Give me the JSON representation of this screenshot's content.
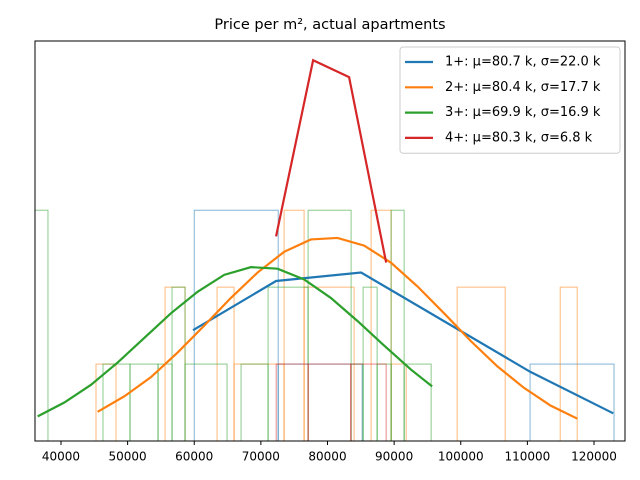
{
  "chart_data": {
    "type": "line",
    "title": "Price per m², actual apartments",
    "xlim": [
      36100,
      124650
    ],
    "ylim": [
      0,
      5.2
    ],
    "xticks": [
      40000,
      50000,
      60000,
      70000,
      80000,
      90000,
      100000,
      110000,
      120000
    ],
    "legend": "upper right",
    "series": [
      {
        "name": "1+: μ=80.7 k, σ=22.0 k",
        "color": "#1f77b4",
        "x": [
          59820,
          72280,
          85045,
          110420,
          122883
        ],
        "values": [
          1.44,
          2.08,
          2.19,
          0.9,
          0.36
        ]
      },
      {
        "name": "2+: μ=80.4 k, σ=17.7 k",
        "color": "#ff7f0e",
        "x": [
          45500,
          49500,
          53500,
          57500,
          61500,
          65500,
          69500,
          73500,
          77500,
          81500,
          85500,
          89500,
          93500,
          97500,
          101500,
          105500,
          109500,
          113500,
          117500
        ],
        "values": [
          0.38,
          0.58,
          0.83,
          1.15,
          1.5,
          1.86,
          2.19,
          2.46,
          2.62,
          2.64,
          2.54,
          2.32,
          2.01,
          1.66,
          1.3,
          0.97,
          0.69,
          0.46,
          0.29
        ]
      },
      {
        "name": "3+: μ=69.9 k, σ=16.9 k",
        "color": "#2ca02c",
        "x": [
          36500,
          40500,
          44500,
          48500,
          52500,
          56500,
          60500,
          64500,
          68500,
          72500,
          76500,
          80500,
          84500,
          88500,
          92500,
          95700
        ],
        "values": [
          0.32,
          0.5,
          0.73,
          1.02,
          1.34,
          1.66,
          1.94,
          2.16,
          2.26,
          2.24,
          2.1,
          1.86,
          1.56,
          1.24,
          0.93,
          0.71
        ]
      },
      {
        "name": "4+: μ=80.3 k, σ=6.8 k",
        "color": "#d62728",
        "x": [
          72280,
          77840,
          83240,
          88800
        ],
        "values": [
          2.66,
          4.95,
          4.73,
          2.32
        ]
      }
    ],
    "histograms": [
      {
        "color": "#1f77b4",
        "bins": [
          60000,
          72600,
          85200,
          97800,
          110400,
          123000
        ],
        "counts": [
          3,
          1,
          0,
          0,
          1
        ]
      },
      {
        "color": "#ff7f0e",
        "bins": [
          45255,
          48258,
          55616,
          58619,
          63423,
          65976,
          73483,
          76486,
          83994,
          86547,
          89550,
          91802,
          99459,
          106667,
          114925,
          117477
        ],
        "counts": [
          1,
          0,
          2,
          0,
          2,
          1,
          3,
          2,
          0,
          3,
          1,
          0,
          2,
          0,
          2
        ]
      },
      {
        "color": "#2ca02c",
        "bins": [
          36096,
          38048,
          46306,
          50360,
          54565,
          56667,
          58619,
          64925,
          67027,
          71081,
          77087,
          83544,
          85345,
          87447,
          89550,
          91502,
          95556
        ],
        "counts": [
          3,
          0,
          1,
          1,
          1,
          2,
          1,
          0,
          1,
          2,
          3,
          1,
          2,
          1,
          3,
          1
        ]
      },
      {
        "color": "#d62728",
        "bins": [
          72300,
          77100,
          83500,
          88800
        ],
        "counts": [
          1,
          1,
          1
        ]
      }
    ]
  }
}
